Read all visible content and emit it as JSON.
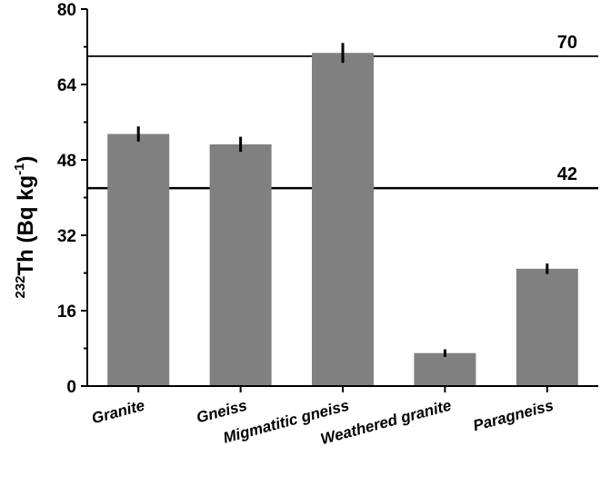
{
  "chart_data": {
    "type": "bar",
    "categories": [
      "Granite",
      "Gneiss",
      "Migmatitic gneiss",
      "Weathered granite",
      "Paragneiss"
    ],
    "values": [
      53.5,
      51.3,
      70.7,
      7.0,
      24.9
    ],
    "errors": [
      1.6,
      1.6,
      2.1,
      0.8,
      1.1
    ],
    "ylabel": {
      "superscript_pre": "232",
      "main": "Th (Bq kg",
      "superscript": "-1",
      "close": ")"
    },
    "ylim": [
      0,
      80
    ],
    "yticks": [
      0,
      16,
      32,
      48,
      64,
      80
    ],
    "reference_lines": [
      {
        "value": 70,
        "label": "70"
      },
      {
        "value": 42,
        "label": "42"
      }
    ],
    "bar_color": "#808080",
    "grid": false
  }
}
